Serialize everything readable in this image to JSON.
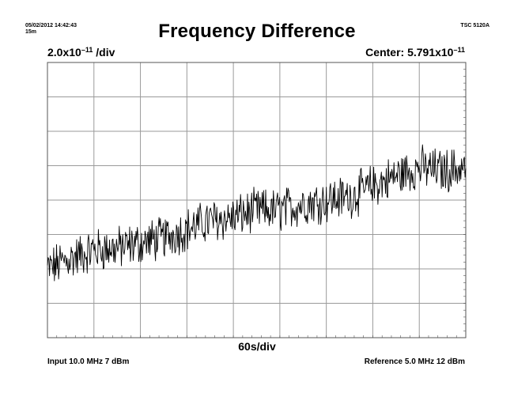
{
  "header": {
    "timestamp": "05/02/2012 14:42:43",
    "duration": "15m",
    "model": "TSC 5120A",
    "title": "Frequency Difference",
    "scale_mantissa": "2.0x10",
    "scale_exponent": "–11",
    "scale_unit": " /div",
    "center_prefix": "Center: 5.791x10",
    "center_exponent": "–11"
  },
  "footer": {
    "x_scale": "60s/div",
    "input": "Input 10.0 MHz 7 dBm",
    "reference": "Reference 5.0 MHz 12 dBm"
  },
  "chart_data": {
    "type": "line",
    "title": "Frequency Difference",
    "x_unit": "s",
    "x_per_div": 60,
    "x_divisions": 9,
    "xlim": [
      0,
      540
    ],
    "y_per_div": 2e-11,
    "y_center": 5.791e-11,
    "y_divisions": 8,
    "ylim": [
      -8e-11,
      8e-11
    ],
    "ylim_note_units": "offset from center",
    "grid": true,
    "series": [
      {
        "values_at_x": [
          0,
          30,
          60,
          90,
          120,
          150,
          180,
          210,
          240,
          270,
          300,
          330,
          360,
          390,
          420,
          450,
          480,
          510,
          540
        ],
        "values_y_offset_e11": [
          -4.0,
          -3.4,
          -2.9,
          -2.8,
          -2.5,
          -2.2,
          -1.7,
          -1.2,
          -1.0,
          -0.6,
          -0.6,
          -0.2,
          0.0,
          0.2,
          0.8,
          1.4,
          1.9,
          1.7,
          1.9
        ],
        "noise_amplitude_e11": 1.1,
        "samples": 600
      }
    ],
    "colors": {
      "trace": "#000000",
      "grid": "#9a9a9a",
      "frame": "#555555"
    }
  }
}
